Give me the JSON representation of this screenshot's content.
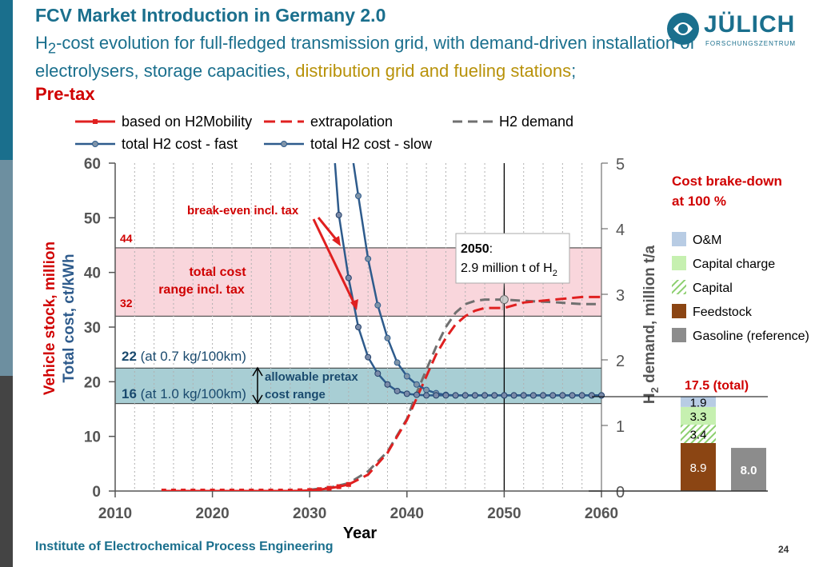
{
  "title": "FCV Market Introduction in Germany 2.0",
  "subtitle": {
    "part1": "H",
    "sub1": "2",
    "part2": "-cost evolution for full-fledged transmission grid, with demand-driven installation of electrolysers, storage capacities, ",
    "highlight": "distribution grid and fueling stations",
    "part3": ";",
    "pretax": "Pre-tax"
  },
  "logo": {
    "name": "JÜLICH",
    "sub": "FORSCHUNGSZENTRUM"
  },
  "footer": "Institute of Electrochemical Process Engineering",
  "page_number": "24",
  "colors": {
    "primary": "#1a6f8d",
    "red": "#e02020",
    "blue": "#2e5b8c",
    "gray": "#707070",
    "pink_band": "#f9d6dc",
    "teal_band": "#a8ced4"
  },
  "chart_data": [
    {
      "type": "line",
      "xlabel": "Year",
      "ylabel_left": "Vehicle stock, million",
      "ylabel_left2": "Total cost, ct/kWh",
      "ylabel_right": "H2 demand, million t/a",
      "ylabel_right_parts": {
        "a": "H",
        "sub": "2",
        "b": " demand, million t/a"
      },
      "xlim": [
        2010,
        2060
      ],
      "ylim_left": [
        0,
        60
      ],
      "ylim_right": [
        0,
        5
      ],
      "x_ticks": [
        "2010",
        "2020",
        "2030",
        "2040",
        "2050",
        "2060"
      ],
      "y_ticks_left": [
        "0",
        "10",
        "20",
        "30",
        "40",
        "50",
        "60"
      ],
      "y_ticks_right": [
        "0",
        "1",
        "2",
        "3",
        "4",
        "5"
      ],
      "legend": [
        "based on H2Mobility",
        "extrapolation",
        "H2 demand",
        "total H2 cost - fast",
        "total H2 cost - slow"
      ],
      "series": [
        {
          "name": "based on H2Mobility",
          "axis": "left",
          "x": [
            2015,
            2016,
            2017,
            2018,
            2019,
            2020,
            2021,
            2022,
            2023,
            2024,
            2025,
            2026,
            2027,
            2028,
            2029,
            2030,
            2031,
            2032,
            2033,
            2034
          ],
          "y": [
            0,
            0,
            0,
            0,
            0,
            0,
            0,
            0,
            0,
            0,
            0,
            0,
            0,
            0,
            0.05,
            0.1,
            0.25,
            0.5,
            0.8,
            1.2
          ]
        },
        {
          "name": "extrapolation",
          "axis": "left",
          "x": [
            2034,
            2036,
            2038,
            2040,
            2041,
            2042,
            2043,
            2044,
            2045,
            2046,
            2047,
            2048,
            2050,
            2052,
            2055,
            2058,
            2060
          ],
          "y": [
            1.2,
            3,
            7,
            13,
            17,
            21,
            25,
            28,
            30.5,
            32,
            33,
            33.5,
            33.5,
            34.5,
            35,
            35.5,
            35.5
          ]
        },
        {
          "name": "H2 demand",
          "axis": "right",
          "x": [
            2030,
            2032,
            2034,
            2036,
            2038,
            2040,
            2041,
            2042,
            2043,
            2044,
            2045,
            2046,
            2047,
            2048,
            2050,
            2052,
            2055,
            2058,
            2060
          ],
          "y": [
            0.02,
            0.05,
            0.12,
            0.3,
            0.6,
            1.1,
            1.5,
            1.85,
            2.2,
            2.5,
            2.72,
            2.85,
            2.9,
            2.92,
            2.92,
            2.9,
            2.88,
            2.85,
            2.85
          ]
        },
        {
          "name": "total H2 cost - fast",
          "axis": "left",
          "x": [
            2032.6,
            2033,
            2034,
            2035,
            2036,
            2037,
            2038,
            2039,
            2040,
            2041,
            2042,
            2043,
            2044,
            2045,
            2046,
            2047,
            2048,
            2049,
            2050,
            2051,
            2052,
            2053,
            2054,
            2055,
            2056,
            2057,
            2058,
            2059,
            2060
          ],
          "y": [
            60,
            50.5,
            39,
            30,
            24.5,
            21.5,
            19.5,
            18.3,
            17.8,
            17.6,
            17.5,
            17.5,
            17.5,
            17.5,
            17.5,
            17.5,
            17.5,
            17.5,
            17.5,
            17.5,
            17.5,
            17.5,
            17.5,
            17.5,
            17.5,
            17.5,
            17.5,
            17.5,
            17.5
          ]
        },
        {
          "name": "total H2 cost - slow",
          "axis": "left",
          "x": [
            2034.5,
            2035,
            2036,
            2037,
            2038,
            2039,
            2040,
            2041,
            2042,
            2043,
            2044,
            2045,
            2046,
            2047,
            2048,
            2049,
            2050,
            2051,
            2052,
            2053,
            2054,
            2055,
            2056,
            2057,
            2058,
            2059,
            2060
          ],
          "y": [
            60,
            54,
            42.5,
            34,
            28,
            23.5,
            21,
            19.5,
            18.5,
            17.9,
            17.6,
            17.5,
            17.5,
            17.5,
            17.5,
            17.5,
            17.5,
            17.5,
            17.5,
            17.5,
            17.5,
            17.5,
            17.5,
            17.5,
            17.5,
            17.5,
            17.5
          ]
        }
      ],
      "bands": [
        {
          "name": "total cost range incl. tax",
          "label1": "total cost",
          "label2": "range incl. tax",
          "from": 32,
          "to": 44.5,
          "label_low": "32",
          "label_high": "44"
        },
        {
          "name": "allowable pretax cost range",
          "label1": "allowable pretax",
          "label2": "cost range",
          "from": 16,
          "to": 22.5,
          "label_high_value": "22",
          "label_high_note": " (at 0.7 kg/100km)",
          "label_low_value": "16",
          "label_low_note": " (at 1.0 kg/100km)"
        }
      ],
      "annotations": {
        "break_even": "break-even incl. tax",
        "callout_year": "2050",
        "callout_colon": ":",
        "callout_text_a": "2.9 million t of H",
        "callout_text_sub": "2",
        "callout_x": 2050
      }
    },
    {
      "type": "bar",
      "title_line1": "Cost brake-down",
      "title_line2": "at 100 %",
      "total_label": "17.5 (total)",
      "stack": [
        {
          "name": "Feedstock",
          "value": 8.9,
          "label": "8.9",
          "color": "#8b4513"
        },
        {
          "name": "Capital",
          "value": 3.4,
          "label": "3.4",
          "color": "#b9e6a5",
          "hatched": true
        },
        {
          "name": "Capital charge",
          "value": 3.3,
          "label": "3.3",
          "color": "#c6f0b0"
        },
        {
          "name": "O&M",
          "value": 1.9,
          "label": "1.9",
          "color": "#b8cce4"
        }
      ],
      "reference": {
        "name": "Gasoline (reference)",
        "value": 8.0,
        "label": "8.0",
        "color": "#8c8c8c"
      },
      "legend": [
        "O&M",
        "Capital charge",
        "Capital",
        "Feedstock",
        "Gasoline (reference)"
      ]
    }
  ]
}
